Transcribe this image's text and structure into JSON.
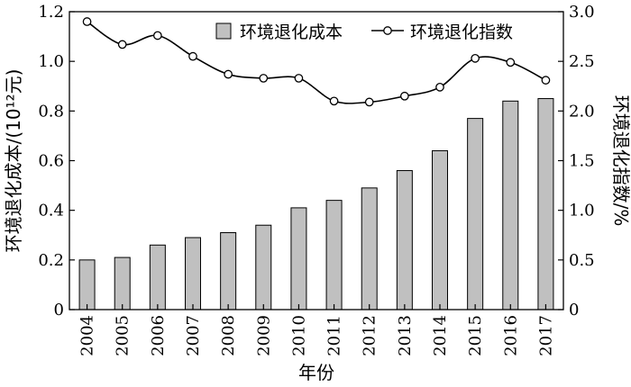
{
  "chart_data": {
    "type": "bar",
    "categories": [
      "2004",
      "2005",
      "2006",
      "2007",
      "2008",
      "2009",
      "2010",
      "2011",
      "2012",
      "2013",
      "2014",
      "2015",
      "2016",
      "2017"
    ],
    "series": [
      {
        "name": "环境退化成本",
        "type": "bar",
        "axis": "left",
        "values": [
          0.2,
          0.21,
          0.26,
          0.29,
          0.31,
          0.34,
          0.41,
          0.44,
          0.49,
          0.56,
          0.64,
          0.77,
          0.84,
          0.85
        ],
        "color": "#c0c0c0"
      },
      {
        "name": "环境退化指数",
        "type": "line",
        "axis": "right",
        "values": [
          2.9,
          2.67,
          2.76,
          2.55,
          2.37,
          2.33,
          2.33,
          2.1,
          2.09,
          2.15,
          2.24,
          2.53,
          2.49,
          2.31
        ],
        "color": "#000000"
      }
    ],
    "xlabel": "年份",
    "ylabel_left": "环境退化成本/(10¹²元)",
    "ylabel_right": "环境退化指数/%",
    "ylim_left": [
      0,
      1.2
    ],
    "ylim_right": [
      0,
      3.0
    ],
    "yticks_left": [
      "0",
      "0.2",
      "0.4",
      "0.6",
      "0.8",
      "1.0",
      "1.2"
    ],
    "yticks_right": [
      "0",
      "0.5",
      "1.0",
      "1.5",
      "2.0",
      "2.5",
      "3.0"
    ],
    "legend_position": "top",
    "grid": false
  }
}
